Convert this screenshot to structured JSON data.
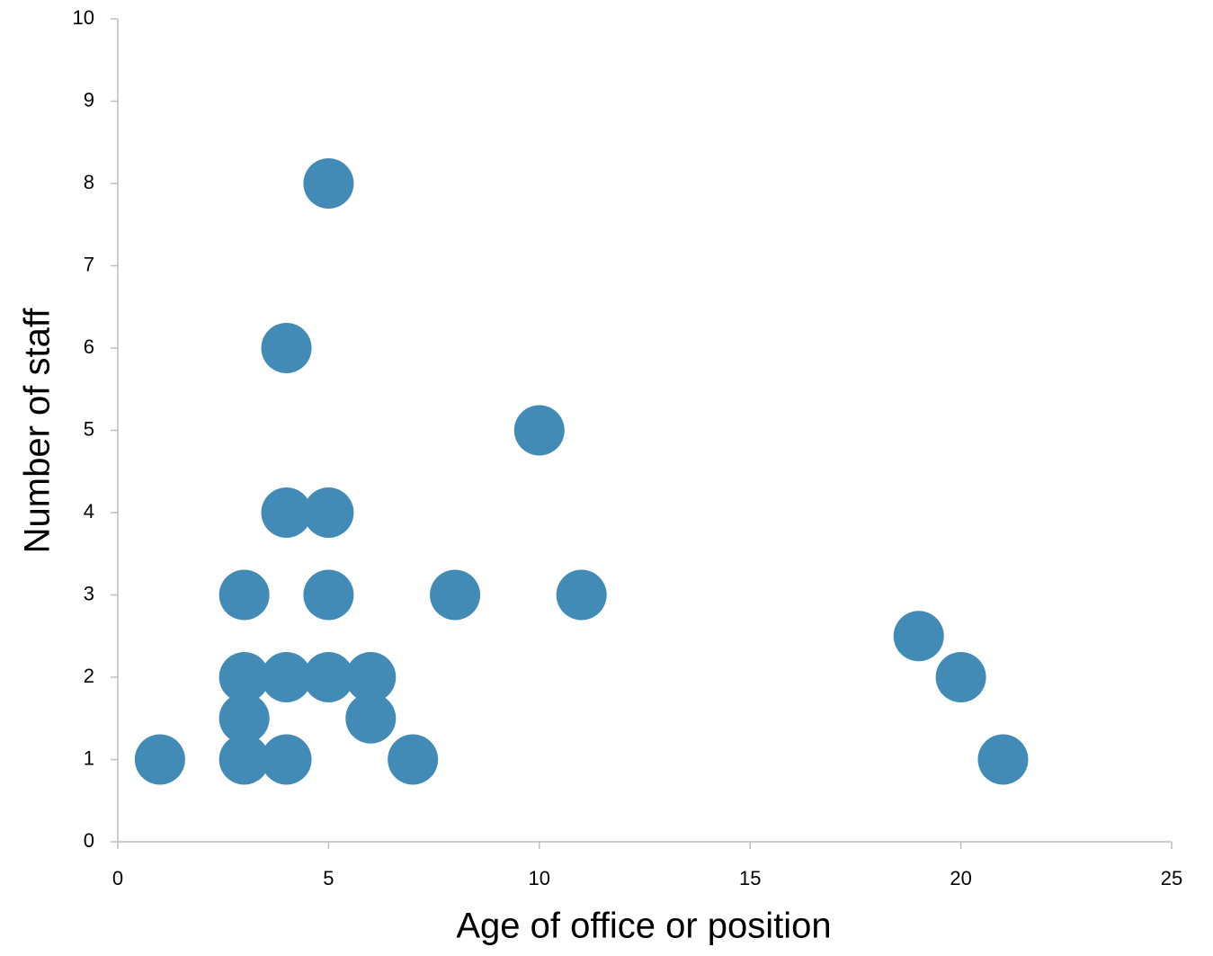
{
  "chart_data": {
    "type": "scatter",
    "xlabel": "Age of office or position",
    "ylabel": "Number of staff",
    "x": [
      5,
      4,
      10,
      4,
      5,
      3,
      5,
      8,
      11,
      19,
      3,
      4,
      5,
      6,
      20,
      3,
      6,
      1,
      3,
      4,
      7,
      21
    ],
    "values": [
      8,
      6,
      5,
      4,
      4,
      3,
      3,
      3,
      3,
      2.5,
      2,
      2,
      2,
      2,
      2,
      1.5,
      1.5,
      1,
      1,
      1,
      1,
      1
    ],
    "color": "#428bb6",
    "xlim": [
      0,
      25
    ],
    "xticks": [
      0,
      5,
      10,
      15,
      20,
      25
    ],
    "ylim": [
      0,
      10
    ],
    "yticks": [
      0,
      1,
      2,
      3,
      4,
      5,
      6,
      7,
      8,
      9,
      10
    ],
    "grid": false
  }
}
